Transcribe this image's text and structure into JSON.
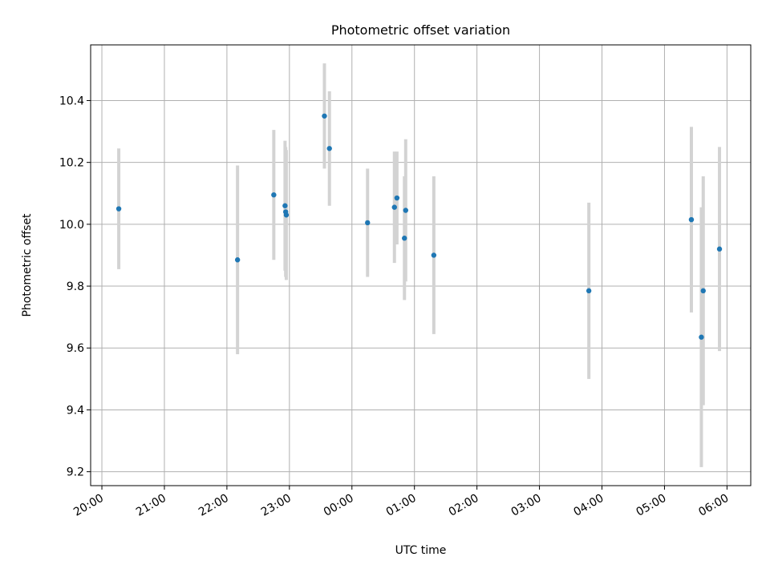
{
  "chart_data": {
    "type": "scatter",
    "title": "Photometric offset variation",
    "xlabel": "UTC time",
    "ylabel": "Photometric offset",
    "x_unit": "hours",
    "x_ticks": [
      {
        "h": 20,
        "label": "20:00"
      },
      {
        "h": 21,
        "label": "21:00"
      },
      {
        "h": 22,
        "label": "22:00"
      },
      {
        "h": 23,
        "label": "23:00"
      },
      {
        "h": 24,
        "label": "00:00"
      },
      {
        "h": 25,
        "label": "01:00"
      },
      {
        "h": 26,
        "label": "02:00"
      },
      {
        "h": 27,
        "label": "03:00"
      },
      {
        "h": 28,
        "label": "04:00"
      },
      {
        "h": 29,
        "label": "05:00"
      },
      {
        "h": 30,
        "label": "06:00"
      }
    ],
    "y_ticks": [
      {
        "v": 9.2,
        "label": "9.2"
      },
      {
        "v": 9.4,
        "label": "9.4"
      },
      {
        "v": 9.6,
        "label": "9.6"
      },
      {
        "v": 9.8,
        "label": "9.8"
      },
      {
        "v": 10.0,
        "label": "10.0"
      },
      {
        "v": 10.2,
        "label": "10.2"
      },
      {
        "v": 10.4,
        "label": "10.4"
      }
    ],
    "xlim": [
      19.82,
      30.38
    ],
    "ylim": [
      9.155,
      10.58
    ],
    "grid": true,
    "colors": {
      "point": "#1f77b4",
      "errorbar": "#d3d3d3",
      "grid": "#b0b0b0"
    },
    "points": [
      {
        "t": 20.27,
        "y": 10.05,
        "err": 0.195
      },
      {
        "t": 22.17,
        "y": 9.885,
        "err": 0.305
      },
      {
        "t": 22.75,
        "y": 10.095,
        "err": 0.21
      },
      {
        "t": 22.93,
        "y": 10.06,
        "err": 0.21
      },
      {
        "t": 22.94,
        "y": 10.04,
        "err": 0.21
      },
      {
        "t": 22.95,
        "y": 10.03,
        "err": 0.21
      },
      {
        "t": 23.56,
        "y": 10.35,
        "err": 0.17
      },
      {
        "t": 23.64,
        "y": 10.245,
        "err": 0.185
      },
      {
        "t": 24.25,
        "y": 10.005,
        "err": 0.175
      },
      {
        "t": 24.68,
        "y": 10.055,
        "err": 0.18
      },
      {
        "t": 24.72,
        "y": 10.085,
        "err": 0.15
      },
      {
        "t": 24.84,
        "y": 9.955,
        "err": 0.2
      },
      {
        "t": 24.86,
        "y": 10.045,
        "err": 0.23
      },
      {
        "t": 25.31,
        "y": 9.9,
        "err": 0.255
      },
      {
        "t": 27.79,
        "y": 9.785,
        "err": 0.285
      },
      {
        "t": 29.43,
        "y": 10.015,
        "err": 0.3
      },
      {
        "t": 29.59,
        "y": 9.635,
        "err": 0.42
      },
      {
        "t": 29.62,
        "y": 9.785,
        "err": 0.37
      },
      {
        "t": 29.88,
        "y": 9.92,
        "err": 0.33
      }
    ]
  }
}
